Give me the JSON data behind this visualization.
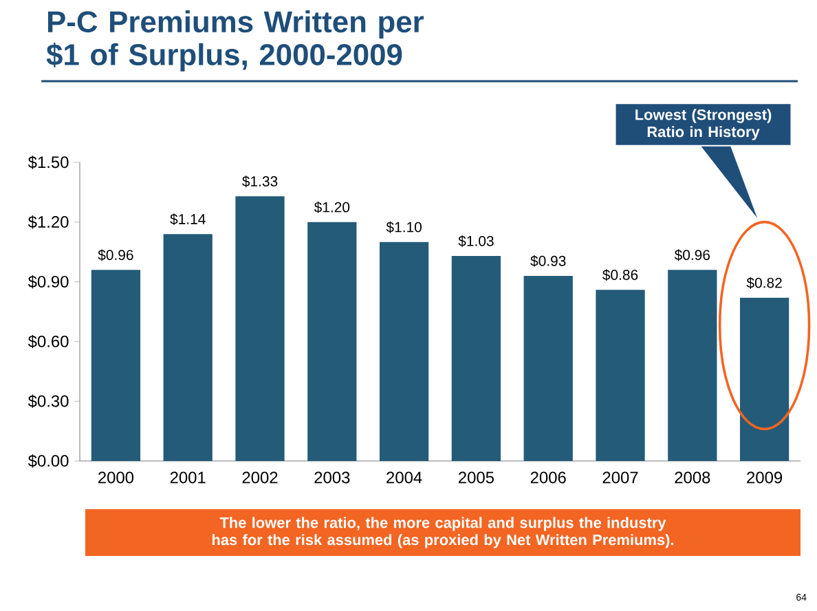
{
  "chart_data": {
    "type": "bar",
    "title": "P-C Premiums Written per $1 of Surplus, 2000-2009",
    "categories": [
      "2000",
      "2001",
      "2002",
      "2003",
      "2004",
      "2005",
      "2006",
      "2007",
      "2008",
      "2009"
    ],
    "values": [
      0.96,
      1.14,
      1.33,
      1.2,
      1.1,
      1.03,
      0.93,
      0.86,
      0.96,
      0.82
    ],
    "value_labels": [
      "$0.96",
      "$1.14",
      "$1.33",
      "$1.20",
      "$1.10",
      "$1.03",
      "$0.93",
      "$0.86",
      "$0.96",
      "$0.82"
    ],
    "color": "#235b78",
    "ylim": [
      0,
      1.5
    ],
    "yticks": [
      {
        "value": 0,
        "label": "$0.00"
      },
      {
        "value": 0.3,
        "label": "$0.30"
      },
      {
        "value": 0.6,
        "label": "$0.60"
      },
      {
        "value": 0.9,
        "label": "$0.90"
      },
      {
        "value": 1.2,
        "label": "$1.20"
      },
      {
        "value": 1.5,
        "label": "$1.50"
      }
    ],
    "annotations": [
      "Lowest (Strongest) Ratio in History",
      "The lower the ratio, the more capital and surplus the industry has for the risk assumed (as proxied by Net Written Premiums).",
      "64"
    ]
  }
}
